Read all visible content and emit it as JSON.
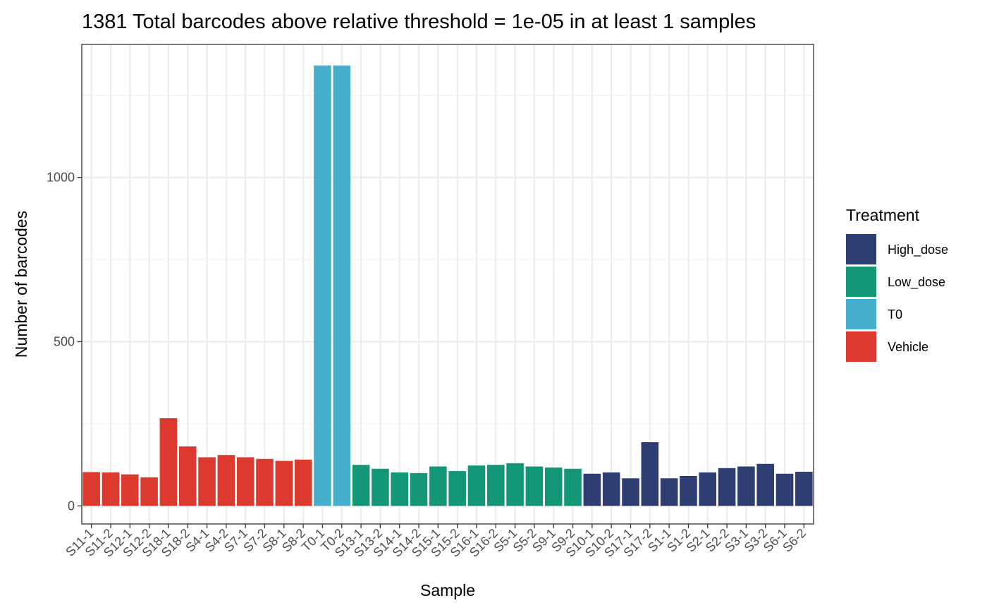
{
  "chart_data": {
    "type": "bar",
    "title": "1381 Total barcodes above relative threshold = 1e-05 in at least 1 samples",
    "xlabel": "Sample",
    "ylabel": "Number of barcodes",
    "ylim": [
      -55,
      1405
    ],
    "yticks": [
      0,
      500,
      1000
    ],
    "grid": true,
    "legend_position": "right",
    "legend": {
      "title": "Treatment",
      "entries": [
        {
          "label": "High_dose",
          "color": "#2e3e72"
        },
        {
          "label": "Low_dose",
          "color": "#149678"
        },
        {
          "label": "T0",
          "color": "#45afcd"
        },
        {
          "label": "Vehicle",
          "color": "#dc3a2e"
        }
      ]
    },
    "categories": [
      "S11-1",
      "S11-2",
      "S12-1",
      "S12-2",
      "S18-1",
      "S18-2",
      "S4-1",
      "S4-2",
      "S7-1",
      "S7-2",
      "S8-1",
      "S8-2",
      "T0-1",
      "T0-2",
      "S13-1",
      "S13-2",
      "S14-1",
      "S14-2",
      "S15-1",
      "S15-2",
      "S16-1",
      "S16-2",
      "S5-1",
      "S5-2",
      "S9-1",
      "S9-2",
      "S10-1",
      "S10-2",
      "S17-1",
      "S17-2",
      "S1-1",
      "S1-2",
      "S2-1",
      "S2-2",
      "S3-1",
      "S3-2",
      "S6-1",
      "S6-2"
    ],
    "values": [
      103,
      102,
      96,
      87,
      267,
      181,
      148,
      155,
      148,
      143,
      137,
      141,
      1341,
      1341,
      125,
      113,
      102,
      100,
      120,
      106,
      123,
      125,
      130,
      120,
      117,
      113,
      98,
      102,
      84,
      194,
      84,
      91,
      102,
      115,
      120,
      128,
      98,
      104
    ],
    "treatment": [
      "Vehicle",
      "Vehicle",
      "Vehicle",
      "Vehicle",
      "Vehicle",
      "Vehicle",
      "Vehicle",
      "Vehicle",
      "Vehicle",
      "Vehicle",
      "Vehicle",
      "Vehicle",
      "T0",
      "T0",
      "Low_dose",
      "Low_dose",
      "Low_dose",
      "Low_dose",
      "Low_dose",
      "Low_dose",
      "Low_dose",
      "Low_dose",
      "Low_dose",
      "Low_dose",
      "Low_dose",
      "Low_dose",
      "High_dose",
      "High_dose",
      "High_dose",
      "High_dose",
      "High_dose",
      "High_dose",
      "High_dose",
      "High_dose",
      "High_dose",
      "High_dose",
      "High_dose",
      "High_dose"
    ]
  }
}
